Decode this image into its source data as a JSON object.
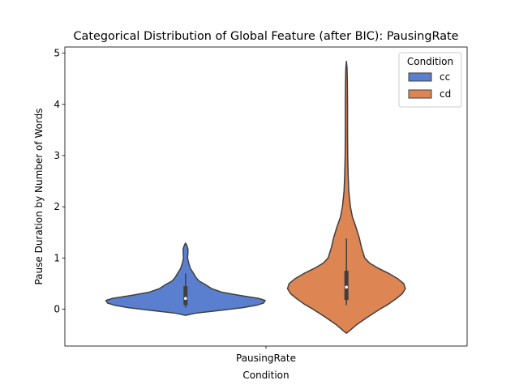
{
  "chart_data": {
    "type": "violin",
    "title": "Categorical Distribution of Global Feature (after BIC): PausingRate",
    "xlabel": "Condition",
    "ylabel": "Pause Duration by Number of Words",
    "x_tick": "PausingRate",
    "ylim": [
      -0.72,
      5.12
    ],
    "yticks": [
      0,
      1,
      2,
      3,
      4,
      5
    ],
    "grid": false,
    "legend": {
      "title": "Condition",
      "placement": "top-right"
    },
    "series": [
      {
        "name": "cc",
        "color": "#5a7fce",
        "group_center": -0.2,
        "density_profile": [
          [
            -0.12,
            0.0
          ],
          [
            -0.08,
            0.12
          ],
          [
            -0.03,
            0.4
          ],
          [
            0.03,
            0.72
          ],
          [
            0.08,
            0.9
          ],
          [
            0.12,
            0.98
          ],
          [
            0.17,
            1.0
          ],
          [
            0.21,
            0.92
          ],
          [
            0.27,
            0.68
          ],
          [
            0.33,
            0.46
          ],
          [
            0.4,
            0.33
          ],
          [
            0.48,
            0.25
          ],
          [
            0.55,
            0.17
          ],
          [
            0.62,
            0.13
          ],
          [
            0.7,
            0.1
          ],
          [
            0.8,
            0.06
          ],
          [
            0.9,
            0.04
          ],
          [
            1.0,
            0.025
          ],
          [
            1.1,
            0.03
          ],
          [
            1.18,
            0.03
          ],
          [
            1.26,
            0.012
          ],
          [
            1.29,
            0.0
          ]
        ],
        "box": {
          "q1": 0.08,
          "median": 0.21,
          "q3": 0.45,
          "whisker_low": 0.03,
          "whisker_high": 0.7
        }
      },
      {
        "name": "cd",
        "color": "#dd8553",
        "group_center": 0.2,
        "density_profile": [
          [
            -0.47,
            0.0
          ],
          [
            -0.42,
            0.04
          ],
          [
            -0.3,
            0.13
          ],
          [
            -0.15,
            0.27
          ],
          [
            0.0,
            0.42
          ],
          [
            0.1,
            0.53
          ],
          [
            0.2,
            0.62
          ],
          [
            0.3,
            0.7
          ],
          [
            0.4,
            0.74
          ],
          [
            0.5,
            0.72
          ],
          [
            0.6,
            0.64
          ],
          [
            0.7,
            0.53
          ],
          [
            0.8,
            0.4
          ],
          [
            0.9,
            0.29
          ],
          [
            1.0,
            0.23
          ],
          [
            1.2,
            0.19
          ],
          [
            1.4,
            0.16
          ],
          [
            1.6,
            0.12
          ],
          [
            1.8,
            0.075
          ],
          [
            2.0,
            0.05
          ],
          [
            2.3,
            0.03
          ],
          [
            2.6,
            0.022
          ],
          [
            3.0,
            0.016
          ],
          [
            3.5,
            0.014
          ],
          [
            4.0,
            0.014
          ],
          [
            4.4,
            0.012
          ],
          [
            4.7,
            0.008
          ],
          [
            4.84,
            0.0
          ]
        ],
        "box": {
          "q1": 0.18,
          "median": 0.43,
          "q3": 0.75,
          "whisker_low": 0.08,
          "whisker_high": 1.38
        }
      }
    ]
  }
}
